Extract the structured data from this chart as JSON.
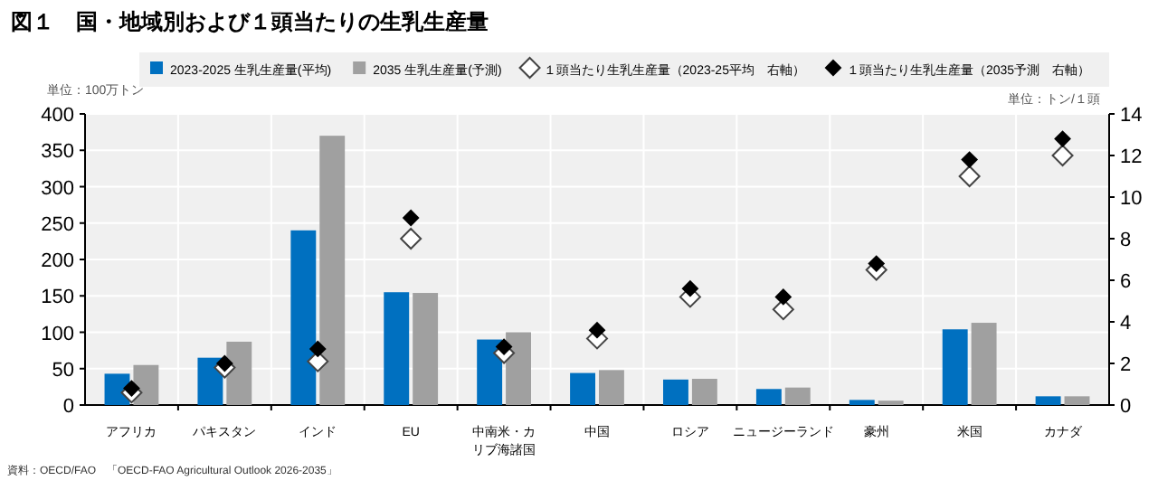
{
  "chart_data": {
    "type": "bar",
    "title": "図１　国・地域別および１頭当たりの生乳生産量",
    "categories": [
      "アフリカ",
      "パキスタン",
      "インド",
      "EU",
      "中南米・カリブ海諸国",
      "中国",
      "ロシア",
      "ニュージーランド",
      "豪州",
      "米国",
      "カナダ"
    ],
    "series": [
      {
        "name": "2023-2025 生乳生産量(平均)",
        "color": "#0070c0",
        "values": [
          43,
          65,
          240,
          155,
          90,
          44,
          35,
          22,
          7,
          104,
          12
        ]
      },
      {
        "name": "2035 生乳生産量(予測)",
        "color": "#a0a0a0",
        "values": [
          55,
          87,
          370,
          154,
          100,
          48,
          36,
          24,
          6,
          113,
          12
        ]
      },
      {
        "name": "１頭当たり生乳生産量（2023-25平均　右軸）",
        "type": "scatter",
        "axis": "y2",
        "color": "#ffffff",
        "values": [
          0.6,
          1.8,
          2.1,
          8.0,
          2.5,
          3.2,
          5.2,
          4.6,
          6.5,
          11.0,
          12.0
        ]
      },
      {
        "name": "１頭当たり生乳生産量（2035予測　右軸）",
        "type": "scatter",
        "axis": "y2",
        "color": "#000000",
        "values": [
          0.8,
          2.0,
          2.7,
          9.0,
          2.8,
          3.6,
          5.6,
          5.2,
          6.8,
          11.8,
          12.8
        ]
      }
    ],
    "ylabel": "単位：100万トン",
    "y2label": "単位：トン/１頭",
    "ylim": [
      0,
      400
    ],
    "yticks": [
      0,
      50,
      100,
      150,
      200,
      250,
      300,
      350,
      400
    ],
    "y2lim": [
      0,
      14
    ],
    "y2ticks": [
      0,
      2,
      4,
      6,
      8,
      10,
      12,
      14
    ],
    "marker": "diamond",
    "grid": true,
    "legend": "top",
    "annotations": [
      "資料：OECD/FAO　「OECD-FAO Agricultural Outlook 2026-2035」"
    ]
  }
}
